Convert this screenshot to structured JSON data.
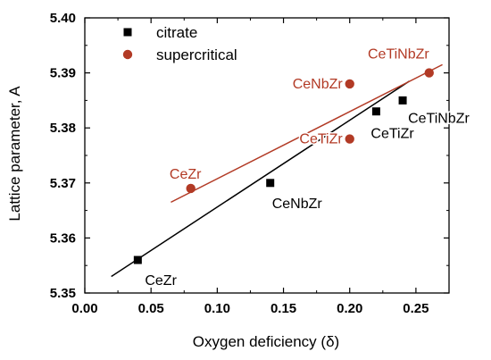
{
  "chart_data": {
    "type": "scatter",
    "xlabel": "Oxygen deficiency (δ)",
    "ylabel": "Lattice parameter, A",
    "xlim": [
      0.0,
      0.275
    ],
    "ylim": [
      5.35,
      5.4
    ],
    "x_ticks": [
      "0.00",
      "0.05",
      "0.10",
      "0.15",
      "0.20",
      "0.25"
    ],
    "y_ticks": [
      "5.35",
      "5.36",
      "5.37",
      "5.38",
      "5.39",
      "5.40"
    ],
    "x_tick_values": [
      0.0,
      0.05,
      0.1,
      0.15,
      0.2,
      0.25
    ],
    "y_tick_values": [
      5.35,
      5.36,
      5.37,
      5.38,
      5.39,
      5.4
    ],
    "legend_position": "top-left",
    "grid": false,
    "series": [
      {
        "name": "citrate",
        "marker": "square",
        "color": "#000000",
        "points": [
          {
            "x": 0.04,
            "y": 5.356,
            "label": "CeZr"
          },
          {
            "x": 0.14,
            "y": 5.37,
            "label": "CeNbZr"
          },
          {
            "x": 0.22,
            "y": 5.383,
            "label": "CeTiZr"
          },
          {
            "x": 0.24,
            "y": 5.385,
            "label": "CeTiNbZr"
          }
        ],
        "fit_line": {
          "x": [
            0.02,
            0.245
          ],
          "y": [
            5.353,
            5.3885
          ]
        }
      },
      {
        "name": "supercritical",
        "marker": "circle",
        "color": "#b23a25",
        "points": [
          {
            "x": 0.08,
            "y": 5.369,
            "label": "CeZr"
          },
          {
            "x": 0.2,
            "y": 5.388,
            "label": "CeNbZr"
          },
          {
            "x": 0.2,
            "y": 5.378,
            "label": "CeTiZr"
          },
          {
            "x": 0.26,
            "y": 5.39,
            "label": "CeTiNbZr"
          }
        ],
        "fit_line": {
          "x": [
            0.065,
            0.27
          ],
          "y": [
            5.3665,
            5.3915
          ]
        }
      }
    ]
  }
}
